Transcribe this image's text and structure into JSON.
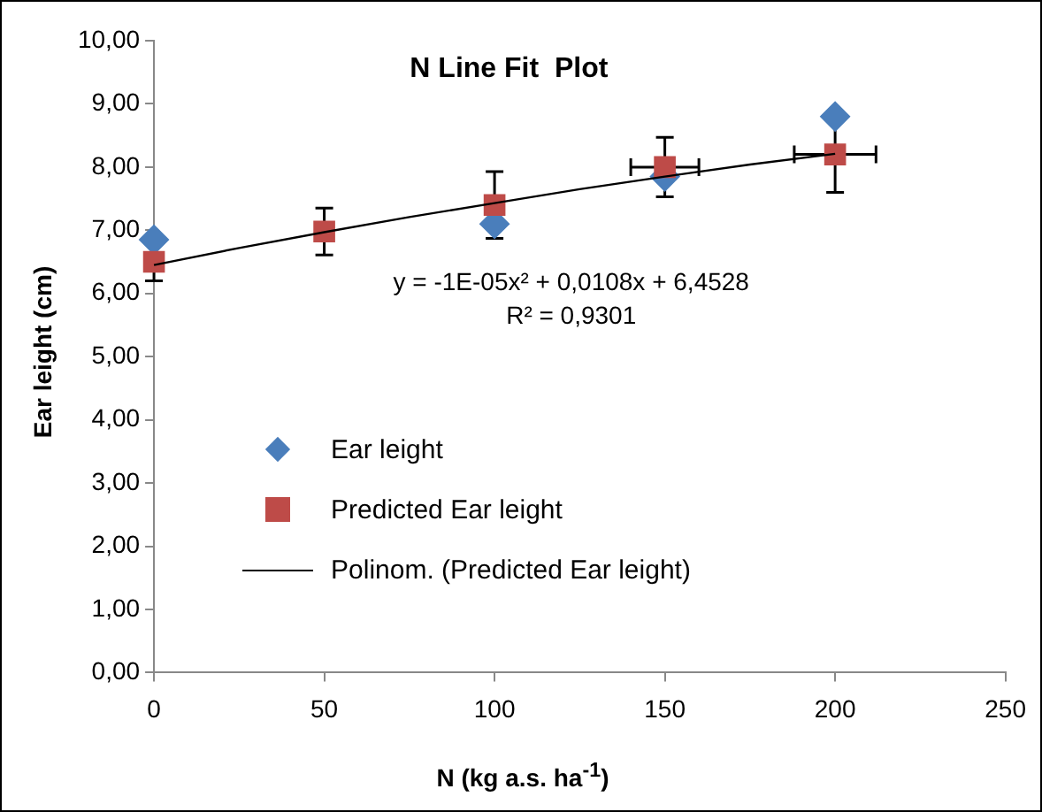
{
  "chart_data": {
    "type": "scatter",
    "title": "N Line Fit  Plot",
    "xlabel": "N (kg a.s. ha$^{-1}$)",
    "ylabel": "Ear leight (cm)",
    "xlim": [
      0,
      250
    ],
    "xticks": [
      0,
      50,
      100,
      150,
      200,
      250
    ],
    "ylim": [
      0,
      10
    ],
    "yticks": [
      {
        "value": 0,
        "label": "0,00"
      },
      {
        "value": 1,
        "label": "1,00"
      },
      {
        "value": 2,
        "label": "2,00"
      },
      {
        "value": 3,
        "label": "3,00"
      },
      {
        "value": 4,
        "label": "4,00"
      },
      {
        "value": 5,
        "label": "5,00"
      },
      {
        "value": 6,
        "label": "6,00"
      },
      {
        "value": 7,
        "label": "7,00"
      },
      {
        "value": 8,
        "label": "8,00"
      },
      {
        "value": 9,
        "label": "9,00"
      },
      {
        "value": 10,
        "label": "10,00"
      }
    ],
    "series": [
      {
        "name": "Ear leight",
        "marker": "diamond",
        "color": "#4a7ebb",
        "x": [
          0,
          50,
          100,
          150,
          200
        ],
        "values": [
          6.85,
          null,
          7.1,
          7.85,
          8.8
        ]
      },
      {
        "name": "Predicted Ear leight",
        "marker": "square",
        "color": "#be4b48",
        "x": [
          0,
          50,
          100,
          150,
          200
        ],
        "values": [
          6.5,
          6.98,
          7.4,
          8.0,
          8.2
        ],
        "errors": [
          0.3,
          0.37,
          0.53,
          0.47,
          0.6
        ],
        "xerrors": [
          null,
          null,
          null,
          10,
          12
        ]
      },
      {
        "name": "Polinom. (Predicted Ear leight)",
        "type": "line",
        "marker": "none",
        "color": "#000000",
        "x": [
          0,
          25,
          50,
          75,
          100,
          125,
          150,
          175,
          200
        ],
        "values": [
          6.45,
          6.72,
          6.97,
          7.21,
          7.43,
          7.65,
          7.85,
          8.04,
          8.21
        ]
      }
    ],
    "annotations": [
      "y = -1E-05x² + 0,0108x + 6,4528",
      "R² = 0,9301"
    ],
    "legend": "left",
    "grid": false
  }
}
